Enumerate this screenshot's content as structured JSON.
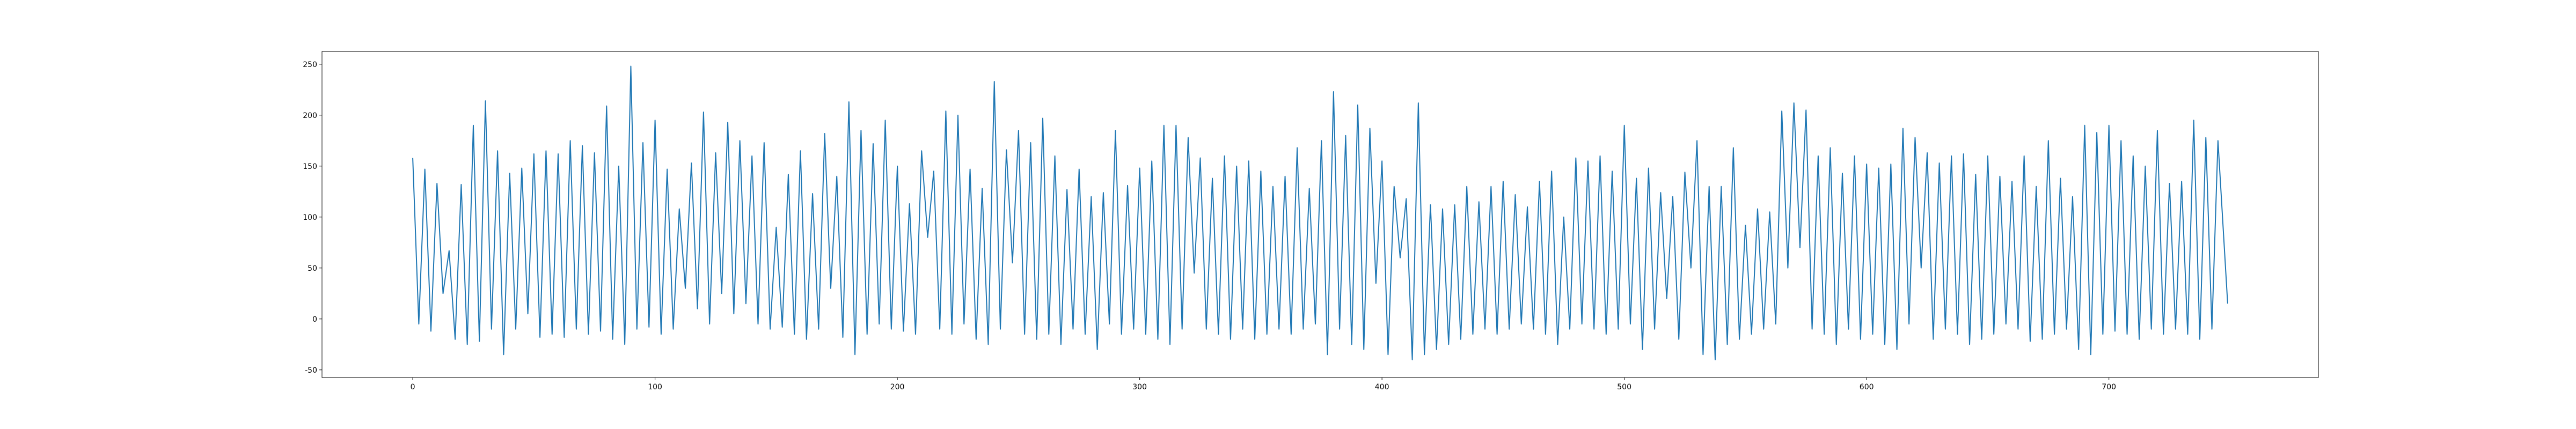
{
  "chart_data": {
    "type": "line",
    "x": [
      0,
      2.5,
      5,
      7.5,
      10,
      12.5,
      15,
      17.5,
      20,
      22.5,
      25,
      27.5,
      30,
      32.5,
      35,
      37.5,
      40,
      42.5,
      45,
      47.5,
      50,
      52.5,
      55,
      57.5,
      60,
      62.5,
      65,
      67.5,
      70,
      72.5,
      75,
      77.5,
      80,
      82.5,
      85,
      87.5,
      90,
      92.5,
      95,
      97.5,
      100,
      102.5,
      105,
      107.5,
      110,
      112.5,
      115,
      117.5,
      120,
      122.5,
      125,
      127.5,
      130,
      132.5,
      135,
      137.5,
      140,
      142.5,
      145,
      147.5,
      150,
      152.5,
      155,
      157.5,
      160,
      162.5,
      165,
      167.5,
      170,
      172.5,
      175,
      177.5,
      180,
      182.5,
      185,
      187.5,
      190,
      192.5,
      195,
      197.5,
      200,
      202.5,
      205,
      207.5,
      210,
      212.5,
      215,
      217.5,
      220,
      222.5,
      225,
      227.5,
      230,
      232.5,
      235,
      237.5,
      240,
      242.5,
      245,
      247.5,
      250,
      252.5,
      255,
      257.5,
      260,
      262.5,
      265,
      267.5,
      270,
      272.5,
      275,
      277.5,
      280,
      282.5,
      285,
      287.5,
      290,
      292.5,
      295,
      297.5,
      300,
      302.5,
      305,
      307.5,
      310,
      312.5,
      315,
      317.5,
      320,
      322.5,
      325,
      327.5,
      330,
      332.5,
      335,
      337.5,
      340,
      342.5,
      345,
      347.5,
      350,
      352.5,
      355,
      357.5,
      360,
      362.5,
      365,
      367.5,
      370,
      372.5,
      375,
      377.5,
      380,
      382.5,
      385,
      387.5,
      390,
      392.5,
      395,
      397.5,
      400,
      402.5,
      405,
      407.5,
      410,
      412.5,
      415,
      417.5,
      420,
      422.5,
      425,
      427.5,
      430,
      432.5,
      435,
      437.5,
      440,
      442.5,
      445,
      447.5,
      450,
      452.5,
      455,
      457.5,
      460,
      462.5,
      465,
      467.5,
      470,
      472.5,
      475,
      477.5,
      480,
      482.5,
      485,
      487.5,
      490,
      492.5,
      495,
      497.5,
      500,
      502.5,
      505,
      507.5,
      510,
      512.5,
      515,
      517.5,
      520,
      522.5,
      525,
      527.5,
      530,
      532.5,
      535,
      537.5,
      540,
      542.5,
      545,
      547.5,
      550,
      552.5,
      555,
      557.5,
      560,
      562.5,
      565,
      567.5,
      570,
      572.5,
      575,
      577.5,
      580,
      582.5,
      585,
      587.5,
      590,
      592.5,
      595,
      597.5,
      600,
      602.5,
      605,
      607.5,
      610,
      612.5,
      615,
      617.5,
      620,
      622.5,
      625,
      627.5,
      630,
      632.5,
      635,
      637.5,
      640,
      642.5,
      645,
      647.5,
      650,
      652.5,
      655,
      657.5,
      660,
      662.5,
      665,
      667.5,
      670,
      672.5,
      675,
      677.5,
      680,
      682.5,
      685,
      687.5,
      690,
      692.5,
      695,
      697.5,
      700,
      702.5,
      705,
      707.5,
      710,
      712.5,
      715,
      717.5,
      720,
      722.5,
      725,
      727.5,
      730,
      732.5,
      735,
      737.5,
      740,
      742.5,
      745,
      749
    ],
    "series": [
      {
        "color": "#1f77b4",
        "values": [
          158,
          -5,
          147,
          -12,
          133,
          25,
          67,
          -20,
          132,
          -25,
          190,
          -22,
          214,
          -10,
          165,
          -35,
          143,
          -10,
          148,
          5,
          162,
          -18,
          165,
          -15,
          162,
          -18,
          175,
          -10,
          170,
          -15,
          163,
          -12,
          209,
          -20,
          150,
          -25,
          248,
          -10,
          173,
          -8,
          195,
          -15,
          147,
          -10,
          108,
          30,
          153,
          10,
          203,
          -5,
          163,
          25,
          193,
          5,
          175,
          15,
          160,
          -5,
          173,
          -10,
          90,
          -8,
          142,
          -15,
          165,
          -20,
          123,
          -10,
          182,
          30,
          140,
          -18,
          213,
          -35,
          185,
          -15,
          172,
          -5,
          195,
          -10,
          150,
          -12,
          113,
          -15,
          165,
          80,
          145,
          -10,
          204,
          -15,
          200,
          -5,
          147,
          -20,
          128,
          -25,
          233,
          -10,
          166,
          55,
          185,
          -15,
          173,
          -20,
          197,
          -15,
          160,
          -25,
          127,
          -10,
          147,
          -15,
          120,
          -30,
          124,
          -5,
          185,
          -15,
          131,
          -10,
          148,
          -15,
          155,
          -20,
          190,
          -25,
          190,
          -10,
          178,
          45,
          158,
          -10,
          138,
          -15,
          160,
          -20,
          150,
          -10,
          155,
          -20,
          145,
          -15,
          130,
          -10,
          140,
          -15,
          168,
          -10,
          128,
          -5,
          175,
          -35,
          223,
          -10,
          180,
          -25,
          210,
          -30,
          187,
          35,
          155,
          -35,
          130,
          60,
          118,
          -40,
          212,
          -35,
          112,
          -30,
          108,
          -25,
          112,
          -20,
          130,
          -15,
          115,
          -10,
          130,
          -15,
          135,
          -10,
          122,
          -5,
          110,
          -10,
          135,
          -15,
          145,
          -25,
          100,
          -10,
          158,
          -5,
          155,
          -10,
          160,
          -15,
          145,
          -10,
          190,
          -5,
          138,
          -30,
          148,
          -10,
          124,
          20,
          120,
          -20,
          144,
          50,
          175,
          -35,
          130,
          -40,
          130,
          -25,
          168,
          -20,
          92,
          -15,
          108,
          -10,
          105,
          -5,
          204,
          50,
          212,
          70,
          205,
          -10,
          160,
          -15,
          168,
          -25,
          143,
          -10,
          160,
          -20,
          152,
          -15,
          148,
          -25,
          152,
          -30,
          187,
          -5,
          178,
          50,
          163,
          -20,
          153,
          -10,
          160,
          -15,
          162,
          -25,
          142,
          -20,
          160,
          -15,
          140,
          -5,
          135,
          -10,
          160,
          -22,
          130,
          -20,
          175,
          -15,
          138,
          -10,
          120,
          -30,
          190,
          -35,
          183,
          -15,
          190,
          -12,
          175,
          -15,
          160,
          -20,
          150,
          -10,
          185,
          -15,
          133,
          -10,
          135,
          -15,
          195,
          -20,
          178,
          -10,
          175,
          15
        ]
      }
    ],
    "xlim": [
      -37.45,
      786.45
    ],
    "xticks": [
      0,
      100,
      200,
      300,
      400,
      500,
      600,
      700
    ],
    "ylim": [
      -57.5,
      262.5
    ],
    "yticks": [
      -50,
      0,
      50,
      100,
      150,
      200,
      250
    ]
  }
}
